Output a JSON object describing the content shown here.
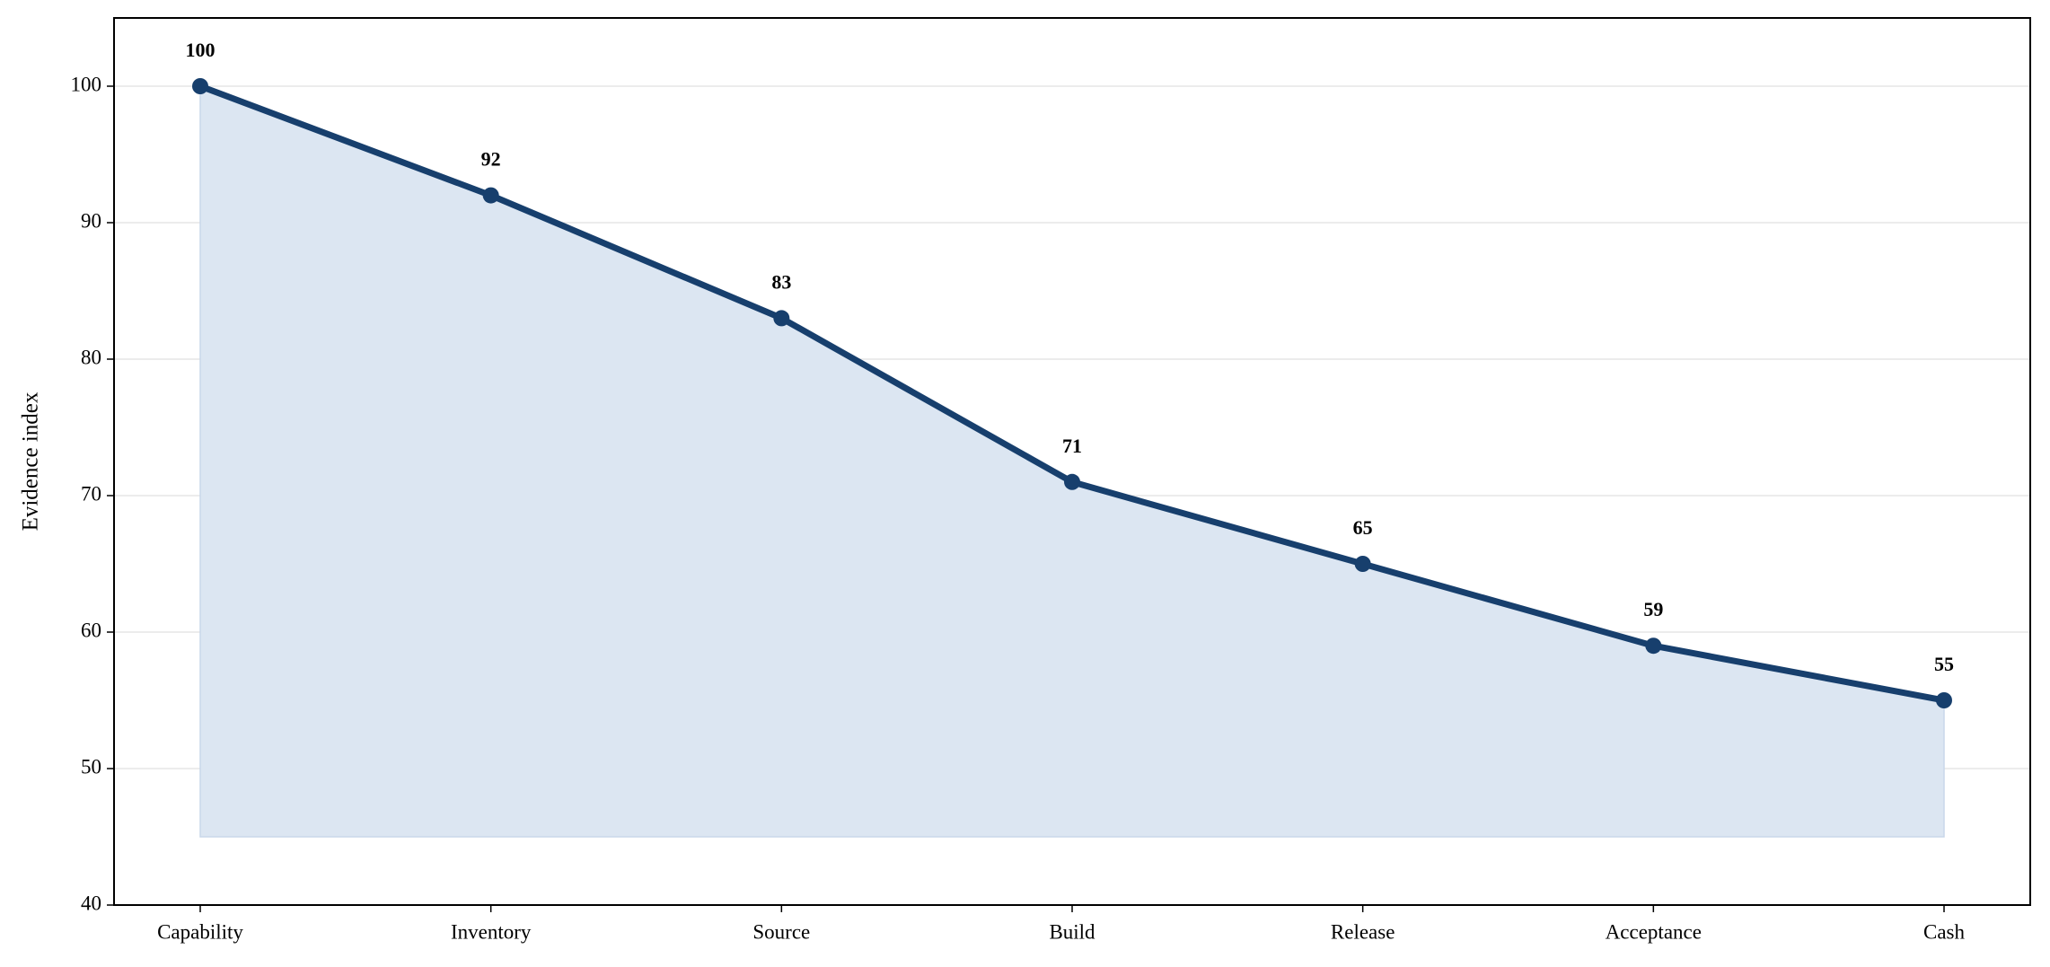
{
  "chart_data": {
    "type": "line",
    "y_label": "Evidence index",
    "categories": [
      "Capability",
      "Inventory",
      "Source",
      "Build",
      "Release",
      "Acceptance",
      "Cash"
    ],
    "values": [
      100,
      92,
      83,
      71,
      65,
      59,
      55
    ],
    "color": "#173f6d",
    "fill_color": "#dce6f2",
    "fill_to": 45,
    "ylim": [
      40,
      105
    ],
    "yticks": [
      40,
      50,
      60,
      70,
      80,
      90,
      100
    ],
    "grid": true
  }
}
